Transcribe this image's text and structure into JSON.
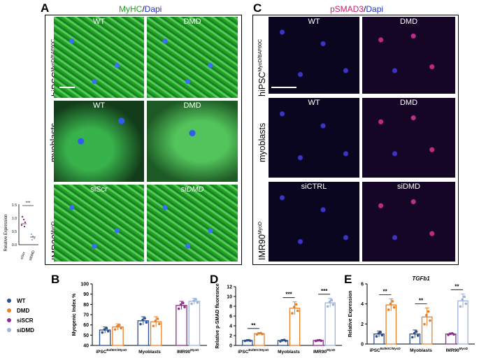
{
  "panels": {
    "A": {
      "letter": "A",
      "title_a": "MyHC",
      "title_sep": "/",
      "title_b": "Dapi"
    },
    "C": {
      "letter": "C",
      "title_a": "pSMAD3",
      "title_sep": "/",
      "title_b": "Dapi"
    },
    "B": {
      "letter": "B"
    },
    "D": {
      "letter": "D"
    },
    "E": {
      "letter": "E"
    }
  },
  "rows": {
    "hipsc": "hiPSC",
    "hipsc_sup": "MyoD/BAF60C",
    "myoblasts": "myoblasts",
    "imr90": "IMR90",
    "imr90_sup": "MyoD"
  },
  "images_A": [
    {
      "label": "WT"
    },
    {
      "label": "DMD"
    },
    {
      "label": "WT"
    },
    {
      "label": "DMD"
    },
    {
      "label": "siScr"
    },
    {
      "label": "siDMD"
    }
  ],
  "images_C": [
    {
      "label": "WT"
    },
    {
      "label": "DMD"
    },
    {
      "label": "WT"
    },
    {
      "label": "DMD"
    },
    {
      "label": "siCTRL"
    },
    {
      "label": "siDMD"
    }
  ],
  "inset": {
    "ylabel": "Relative Expression",
    "yticks": [
      "0.0",
      "0.5",
      "1.0",
      "1.5"
    ],
    "categories": [
      "siScr",
      "siDMD"
    ],
    "sig": "***"
  },
  "legend": {
    "items": [
      {
        "label": "WT",
        "color": "#2d4f8a"
      },
      {
        "label": "DMD",
        "color": "#e8802a"
      },
      {
        "label": "siSCR",
        "color": "#8b2f8b"
      },
      {
        "label": "siDMD",
        "color": "#9fb4d8"
      }
    ]
  },
  "chart_data": [
    {
      "id": "B",
      "type": "bar",
      "ylabel": "Myogenic Index %",
      "ylim": [
        40,
        100
      ],
      "yticks": [
        "40",
        "50",
        "60",
        "70",
        "80",
        "90",
        "100"
      ],
      "group_labels": [
        {
          "main": "iPSC",
          "sup": "Baf60C/MyoD"
        },
        {
          "main": "Myoblasts",
          "sup": ""
        },
        {
          "main": "IMR90",
          "sup": "MyoD"
        }
      ],
      "bars": [
        {
          "group": 0,
          "series": "WT",
          "value": 55,
          "err": 3
        },
        {
          "group": 0,
          "series": "DMD",
          "value": 58,
          "err": 3
        },
        {
          "group": 1,
          "series": "WT",
          "value": 64,
          "err": 4
        },
        {
          "group": 1,
          "series": "DMD",
          "value": 63,
          "err": 5
        },
        {
          "group": 2,
          "series": "siSCR",
          "value": 79,
          "err": 4
        },
        {
          "group": 2,
          "series": "siDMD",
          "value": 83,
          "err": 3
        }
      ]
    },
    {
      "id": "D",
      "type": "bar",
      "ylabel": "Relative p-SMAD fluoresnce",
      "ylim": [
        0,
        12
      ],
      "yticks": [
        "0",
        "2",
        "4",
        "6",
        "8",
        "10",
        "12"
      ],
      "group_labels": [
        {
          "main": "iPSC",
          "sup": "Baf60C/MyoD"
        },
        {
          "main": "Myoblasts",
          "sup": ""
        },
        {
          "main": "IMR90",
          "sup": "MyoD"
        }
      ],
      "bars": [
        {
          "group": 0,
          "series": "WT",
          "value": 1.0,
          "err": 0.1
        },
        {
          "group": 0,
          "series": "DMD",
          "value": 2.4,
          "err": 0.2
        },
        {
          "group": 1,
          "series": "WT",
          "value": 1.0,
          "err": 0.2
        },
        {
          "group": 1,
          "series": "DMD",
          "value": 7.6,
          "err": 1.3
        },
        {
          "group": 2,
          "series": "siSCR",
          "value": 1.0,
          "err": 0.1
        },
        {
          "group": 2,
          "series": "siDMD",
          "value": 8.7,
          "err": 0.9
        }
      ],
      "sig": [
        "**",
        "***",
        "***"
      ]
    },
    {
      "id": "E",
      "type": "bar",
      "title": "TGFb1",
      "ylabel": "Relative Expression",
      "ylim": [
        0,
        6
      ],
      "yticks": [
        "0",
        "2",
        "4",
        "6"
      ],
      "group_labels": [
        {
          "main": "iPSC",
          "sup": "Baf60C/MyoD"
        },
        {
          "main": "Myoblasts",
          "sup": ""
        },
        {
          "main": "IMR90",
          "sup": "MyoD"
        }
      ],
      "bars": [
        {
          "group": 0,
          "series": "WT",
          "value": 1.0,
          "err": 0.3
        },
        {
          "group": 0,
          "series": "DMD",
          "value": 3.9,
          "err": 0.6
        },
        {
          "group": 1,
          "series": "WT",
          "value": 1.0,
          "err": 0.4
        },
        {
          "group": 1,
          "series": "DMD",
          "value": 2.7,
          "err": 0.9
        },
        {
          "group": 2,
          "series": "siSCR",
          "value": 1.0,
          "err": 0.1
        },
        {
          "group": 2,
          "series": "siDMD",
          "value": 4.3,
          "err": 0.7
        }
      ],
      "sig": [
        "**",
        "**",
        "**"
      ]
    }
  ]
}
